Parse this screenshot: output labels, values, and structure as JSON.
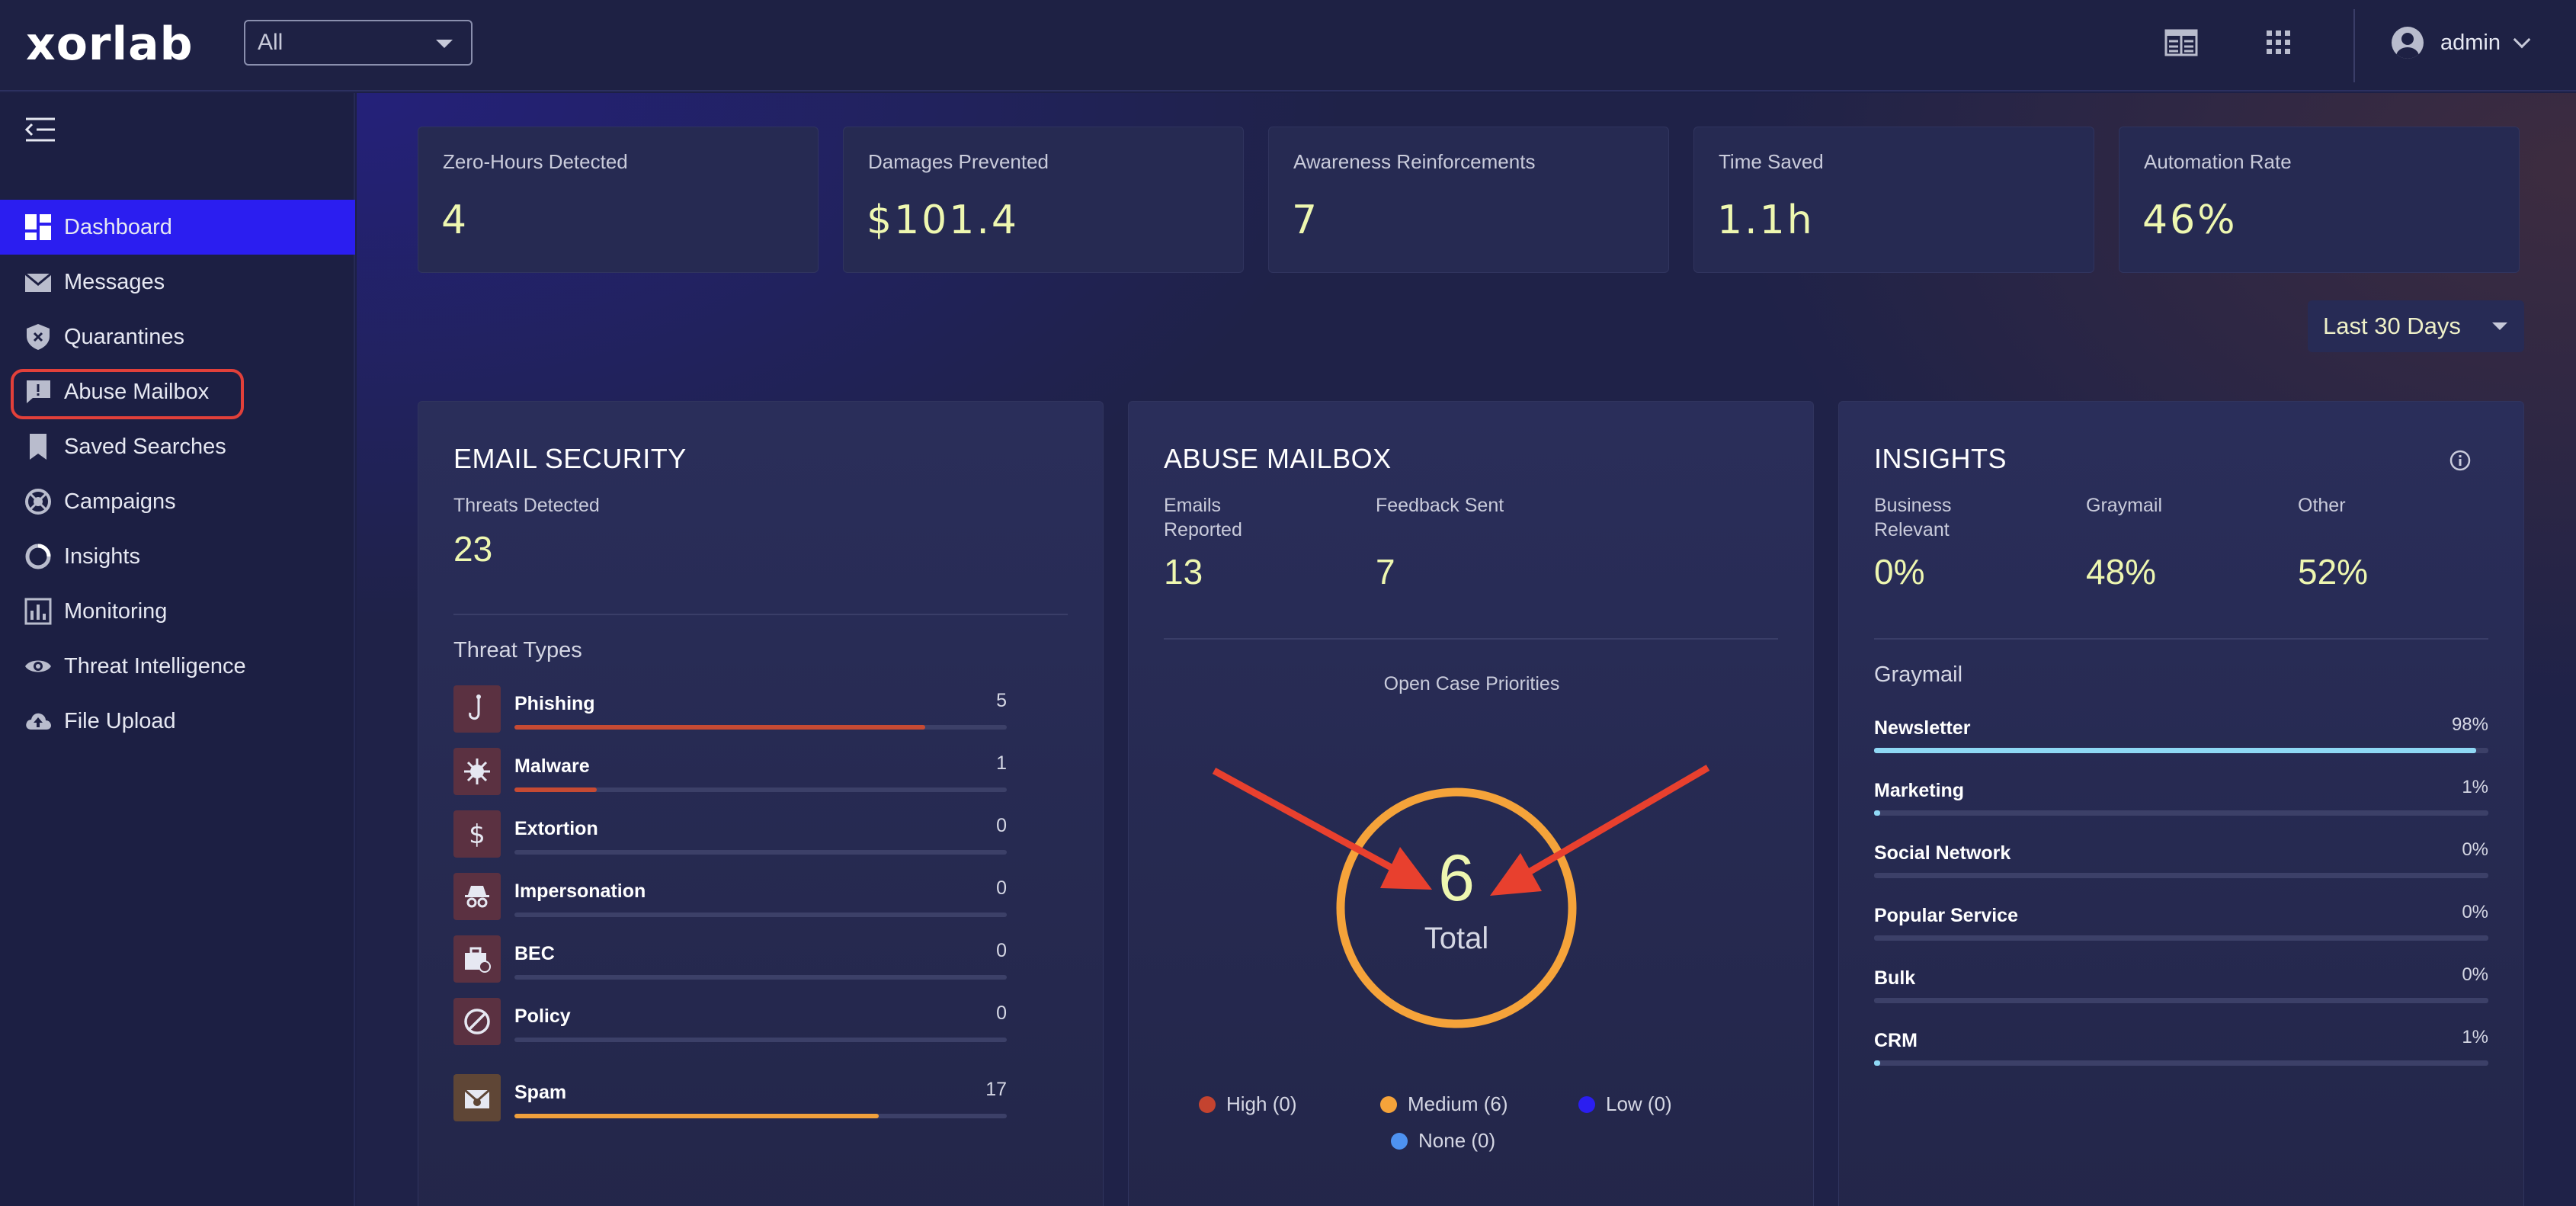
{
  "header": {
    "logo_text": "xorlab",
    "scope_select": {
      "value": "All"
    },
    "user": {
      "name": "admin"
    }
  },
  "sidebar": {
    "items": [
      {
        "label": "Dashboard",
        "icon": "dashboard-icon",
        "active": true
      },
      {
        "label": "Messages",
        "icon": "envelope-icon"
      },
      {
        "label": "Quarantines",
        "icon": "shield-icon"
      },
      {
        "label": "Abuse Mailbox",
        "icon": "report-bubble-icon",
        "highlighted": true
      },
      {
        "label": "Saved Searches",
        "icon": "bookmark-icon"
      },
      {
        "label": "Campaigns",
        "icon": "campaign-icon"
      },
      {
        "label": "Insights",
        "icon": "ring-icon"
      },
      {
        "label": "Monitoring",
        "icon": "bar-chart-icon"
      },
      {
        "label": "Threat Intelligence",
        "icon": "eye-icon"
      },
      {
        "label": "File Upload",
        "icon": "cloud-upload-icon"
      }
    ]
  },
  "kpis": [
    {
      "label": "Zero-Hours Detected",
      "value": "4"
    },
    {
      "label": "Damages Prevented",
      "value": "$101.4"
    },
    {
      "label": "Awareness Reinforcements",
      "value": "7"
    },
    {
      "label": "Time Saved",
      "value": "1.1h"
    },
    {
      "label": "Automation Rate",
      "value": "46%"
    }
  ],
  "date_range": {
    "value": "Last 30 Days"
  },
  "email_security": {
    "title": "EMAIL SECURITY",
    "threats_label": "Threats Detected",
    "threats_value": "23",
    "types_label": "Threat Types",
    "types": [
      {
        "name": "Phishing",
        "count": "5",
        "fraction": 0.835,
        "color": "#c64a33",
        "icon": "hook-icon"
      },
      {
        "name": "Malware",
        "count": "1",
        "fraction": 0.167,
        "color": "#c64a33",
        "icon": "virus-icon"
      },
      {
        "name": "Extortion",
        "count": "0",
        "fraction": 0,
        "color": "#c64a33",
        "icon": "dollar-icon"
      },
      {
        "name": "Impersonation",
        "count": "0",
        "fraction": 0,
        "color": "#c64a33",
        "icon": "incognito-icon"
      },
      {
        "name": "BEC",
        "count": "0",
        "fraction": 0,
        "color": "#c64a33",
        "icon": "briefcase-icon"
      },
      {
        "name": "Policy",
        "count": "0",
        "fraction": 0,
        "color": "#c64a33",
        "icon": "ban-icon"
      },
      {
        "name": "Spam",
        "count": "17",
        "fraction": 0.74,
        "color": "#f0a03c",
        "icon": "spam-mail-icon"
      }
    ]
  },
  "abuse_mailbox": {
    "title": "ABUSE MAILBOX",
    "reported_label": "Emails Reported",
    "reported_value": "13",
    "feedback_label": "Feedback Sent",
    "feedback_value": "7",
    "priorities_label": "Open Case Priorities",
    "total_value": "6",
    "total_label": "Total",
    "legend": [
      {
        "label": "High (0)",
        "color": "#c4432f"
      },
      {
        "label": "Medium (6)",
        "color": "#f5a33a"
      },
      {
        "label": "Low (0)",
        "color": "#2b1ef0"
      },
      {
        "label": "None (0)",
        "color": "#4e92f0"
      }
    ],
    "ring_color": "#f5a33a",
    "annotation_color": "#e8402e"
  },
  "insights": {
    "title": "INSIGHTS",
    "metrics": [
      {
        "label": "Business Relevant",
        "value": "0%"
      },
      {
        "label": "Graymail",
        "value": "48%"
      },
      {
        "label": "Other",
        "value": "52%"
      }
    ],
    "graymail_label": "Graymail",
    "graymail": [
      {
        "name": "Newsletter",
        "pct": "98%",
        "fraction": 0.98
      },
      {
        "name": "Marketing",
        "pct": "1%",
        "fraction": 0.01
      },
      {
        "name": "Social Network",
        "pct": "0%",
        "fraction": 0
      },
      {
        "name": "Popular Service",
        "pct": "0%",
        "fraction": 0
      },
      {
        "name": "Bulk",
        "pct": "0%",
        "fraction": 0
      },
      {
        "name": "CRM",
        "pct": "1%",
        "fraction": 0.01
      }
    ]
  }
}
